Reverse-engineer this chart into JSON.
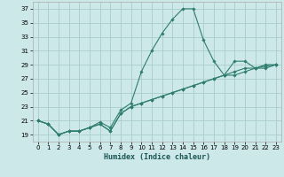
{
  "xlabel": "Humidex (Indice chaleur)",
  "background_color": "#cce8e8",
  "grid_color": "#aacccc",
  "line_color": "#2e7d6e",
  "xlim": [
    -0.5,
    23.5
  ],
  "ylim": [
    18.0,
    38.0
  ],
  "yticks": [
    19,
    21,
    23,
    25,
    27,
    29,
    31,
    33,
    35,
    37
  ],
  "xticks": [
    0,
    1,
    2,
    3,
    4,
    5,
    6,
    7,
    8,
    9,
    10,
    11,
    12,
    13,
    14,
    15,
    16,
    17,
    18,
    19,
    20,
    21,
    22,
    23
  ],
  "series": [
    [
      21.0,
      20.5,
      19.0,
      19.5,
      19.5,
      20.0,
      20.8,
      20.0,
      22.5,
      23.5,
      28.0,
      31.0,
      33.5,
      35.5,
      37.0,
      37.0,
      32.5,
      29.5,
      27.5,
      29.5,
      29.5,
      28.5,
      28.5,
      29.0
    ],
    [
      21.0,
      20.5,
      19.0,
      19.5,
      19.5,
      20.0,
      20.5,
      19.5,
      22.0,
      23.0,
      23.5,
      24.0,
      24.5,
      25.0,
      25.5,
      26.0,
      26.5,
      27.0,
      27.5,
      28.0,
      28.5,
      28.5,
      29.0,
      29.0
    ],
    [
      21.0,
      20.5,
      19.0,
      19.5,
      19.5,
      20.0,
      20.5,
      19.5,
      22.0,
      23.0,
      23.5,
      24.0,
      24.5,
      25.0,
      25.5,
      26.0,
      26.5,
      27.0,
      27.5,
      27.5,
      28.0,
      28.5,
      28.8,
      29.0
    ]
  ]
}
